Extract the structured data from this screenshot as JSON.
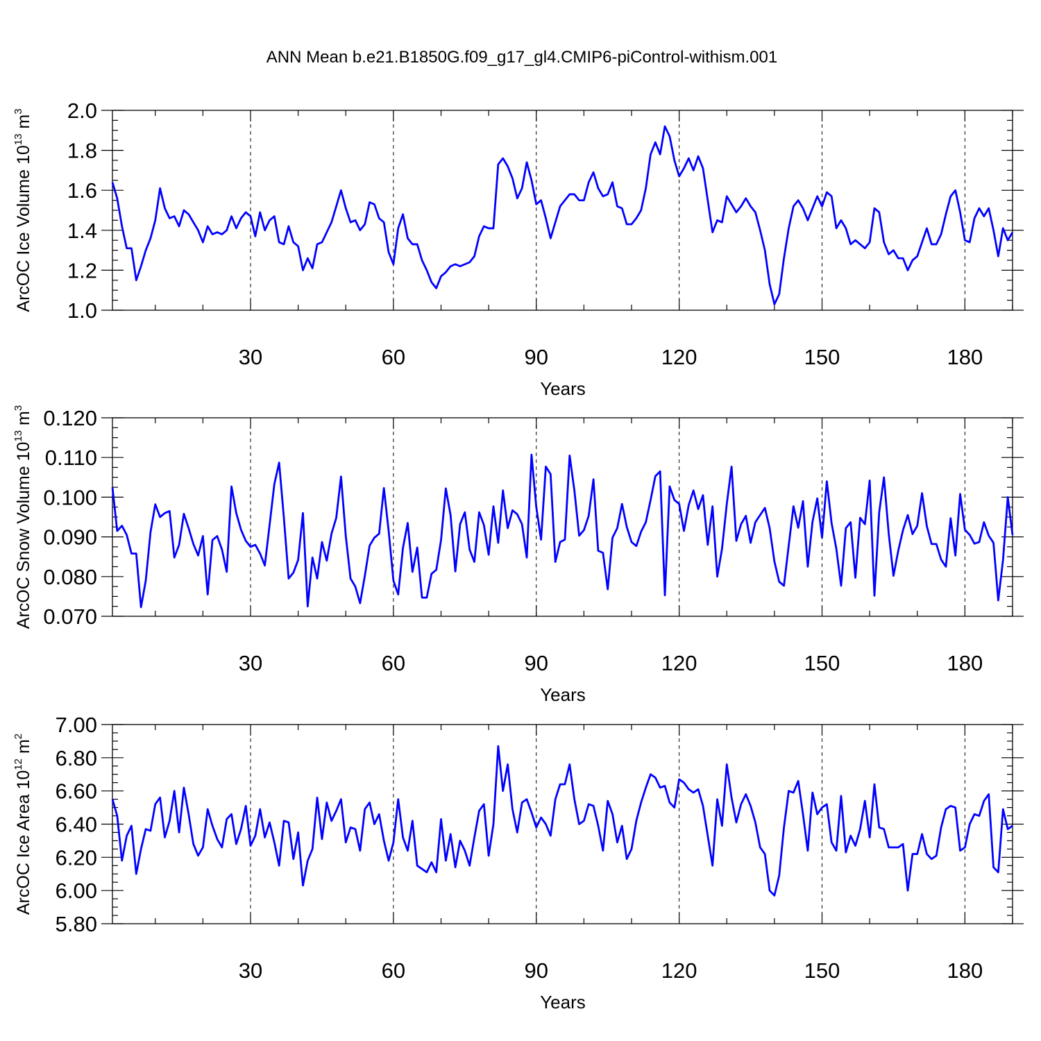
{
  "title": "ANN Mean b.e21.B1850G.f09_g17_gl4.CMIP6-piControl-withism.001",
  "chart_data": [
    {
      "type": "line",
      "name": "ice-volume",
      "ylabel": {
        "main": "ArcOC Ice Volume 10",
        "sup": "13",
        "unit": " m",
        "unit_sup": "3"
      },
      "xlabel": "Years",
      "xlim": [
        1,
        190
      ],
      "ylim": [
        1.0,
        2.0
      ],
      "yticks": [
        "1.0",
        "1.2",
        "1.4",
        "1.6",
        "1.8",
        "2.0"
      ],
      "ytick_values": [
        1.0,
        1.2,
        1.4,
        1.6,
        1.8,
        2.0
      ],
      "xticks": [
        "30",
        "60",
        "90",
        "120",
        "150",
        "180"
      ],
      "xtick_values": [
        30,
        60,
        90,
        120,
        150,
        180
      ],
      "grid": "vertical dashed at x ticks",
      "color": "#0000ff",
      "values": [
        1.64,
        1.56,
        1.42,
        1.31,
        1.31,
        1.15,
        1.22,
        1.3,
        1.36,
        1.45,
        1.61,
        1.51,
        1.46,
        1.47,
        1.42,
        1.5,
        1.48,
        1.44,
        1.4,
        1.34,
        1.42,
        1.38,
        1.39,
        1.38,
        1.4,
        1.47,
        1.41,
        1.46,
        1.49,
        1.47,
        1.37,
        1.49,
        1.4,
        1.45,
        1.47,
        1.34,
        1.33,
        1.42,
        1.34,
        1.32,
        1.2,
        1.26,
        1.21,
        1.33,
        1.34,
        1.39,
        1.44,
        1.52,
        1.6,
        1.51,
        1.44,
        1.45,
        1.4,
        1.43,
        1.54,
        1.53,
        1.46,
        1.44,
        1.29,
        1.23,
        1.41,
        1.48,
        1.36,
        1.33,
        1.33,
        1.25,
        1.2,
        1.14,
        1.11,
        1.17,
        1.19,
        1.22,
        1.23,
        1.22,
        1.23,
        1.24,
        1.27,
        1.37,
        1.42,
        1.41,
        1.41,
        1.73,
        1.76,
        1.72,
        1.66,
        1.56,
        1.61,
        1.74,
        1.65,
        1.53,
        1.55,
        1.46,
        1.36,
        1.44,
        1.52,
        1.55,
        1.58,
        1.58,
        1.55,
        1.55,
        1.64,
        1.69,
        1.61,
        1.57,
        1.58,
        1.64,
        1.52,
        1.51,
        1.43,
        1.43,
        1.46,
        1.5,
        1.61,
        1.78,
        1.84,
        1.78,
        1.92,
        1.87,
        1.75,
        1.67,
        1.71,
        1.76,
        1.7,
        1.77,
        1.71,
        1.55,
        1.39,
        1.45,
        1.44,
        1.57,
        1.53,
        1.49,
        1.52,
        1.56,
        1.52,
        1.49,
        1.4,
        1.3,
        1.13,
        1.03,
        1.08,
        1.26,
        1.41,
        1.52,
        1.55,
        1.51,
        1.45,
        1.51,
        1.57,
        1.52,
        1.59,
        1.57,
        1.41,
        1.45,
        1.41,
        1.33,
        1.35,
        1.33,
        1.31,
        1.34,
        1.51,
        1.49,
        1.34,
        1.28,
        1.3,
        1.26,
        1.26,
        1.2,
        1.25,
        1.27,
        1.34,
        1.41,
        1.33,
        1.33,
        1.38,
        1.48,
        1.57,
        1.6,
        1.49,
        1.35,
        1.34,
        1.46,
        1.51,
        1.47,
        1.51,
        1.4,
        1.27,
        1.41,
        1.35,
        1.39
      ]
    },
    {
      "type": "line",
      "name": "snow-volume",
      "ylabel": {
        "main": "ArcOC Snow Volume 10",
        "sup": "13",
        "unit": " m",
        "unit_sup": "3"
      },
      "xlabel": "Years",
      "xlim": [
        1,
        190
      ],
      "ylim": [
        0.07,
        0.12
      ],
      "yticks": [
        "0.070",
        "0.080",
        "0.090",
        "0.100",
        "0.110",
        "0.120"
      ],
      "ytick_values": [
        0.07,
        0.08,
        0.09,
        0.1,
        0.11,
        0.12
      ],
      "xticks": [
        "30",
        "60",
        "90",
        "120",
        "150",
        "180"
      ],
      "xtick_values": [
        30,
        60,
        90,
        120,
        150,
        180
      ],
      "grid": "vertical dashed at x ticks",
      "color": "#0000ff",
      "values": [
        0.1025,
        0.0915,
        0.0928,
        0.0905,
        0.0858,
        0.0858,
        0.0723,
        0.079,
        0.0912,
        0.0982,
        0.095,
        0.096,
        0.0965,
        0.0848,
        0.088,
        0.0958,
        0.0922,
        0.0882,
        0.0853,
        0.0902,
        0.0755,
        0.0892,
        0.0902,
        0.0868,
        0.0812,
        0.1027,
        0.096,
        0.0918,
        0.089,
        0.0875,
        0.088,
        0.0858,
        0.0828,
        0.093,
        0.1033,
        0.1087,
        0.0948,
        0.0795,
        0.081,
        0.0842,
        0.096,
        0.0725,
        0.0848,
        0.0795,
        0.0887,
        0.084,
        0.0908,
        0.0948,
        0.1052,
        0.0902,
        0.0795,
        0.0775,
        0.0733,
        0.0802,
        0.0878,
        0.0898,
        0.0908,
        0.1023,
        0.0915,
        0.079,
        0.0755,
        0.0872,
        0.0935,
        0.0812,
        0.0873,
        0.0747,
        0.0747,
        0.0807,
        0.0817,
        0.0892,
        0.1022,
        0.0955,
        0.0813,
        0.0932,
        0.0962,
        0.0868,
        0.0837,
        0.0962,
        0.093,
        0.0855,
        0.0977,
        0.0885,
        0.1017,
        0.0922,
        0.0967,
        0.0957,
        0.0932,
        0.0848,
        0.1107,
        0.0975,
        0.0893,
        0.1077,
        0.1058,
        0.0837,
        0.0887,
        0.0893,
        0.1105,
        0.1017,
        0.0903,
        0.0917,
        0.0953,
        0.1045,
        0.0865,
        0.086,
        0.0768,
        0.0898,
        0.0922,
        0.0983,
        0.0925,
        0.0887,
        0.0877,
        0.0913,
        0.0937,
        0.0993,
        0.1053,
        0.1065,
        0.0753,
        0.1027,
        0.0993,
        0.0983,
        0.0915,
        0.098,
        0.1017,
        0.097,
        0.1005,
        0.088,
        0.0977,
        0.08,
        0.087,
        0.0983,
        0.1077,
        0.089,
        0.0932,
        0.0953,
        0.0885,
        0.0937,
        0.0955,
        0.0973,
        0.0922,
        0.0838,
        0.0787,
        0.0777,
        0.0878,
        0.0977,
        0.0923,
        0.099,
        0.0825,
        0.0938,
        0.0997,
        0.0898,
        0.104,
        0.0935,
        0.087,
        0.0777,
        0.0922,
        0.0937,
        0.0797,
        0.0948,
        0.0932,
        0.1042,
        0.0752,
        0.0962,
        0.105,
        0.0908,
        0.0802,
        0.0865,
        0.0917,
        0.0955,
        0.0907,
        0.0928,
        0.101,
        0.0927,
        0.0882,
        0.0882,
        0.0843,
        0.0825,
        0.0947,
        0.0853,
        0.1008,
        0.0918,
        0.0905,
        0.0883,
        0.0887,
        0.0937,
        0.0903,
        0.0885,
        0.074,
        0.0842,
        0.1,
        0.0905
      ]
    },
    {
      "type": "line",
      "name": "ice-area",
      "ylabel": {
        "main": "ArcOC Ice Area 10",
        "sup": "12",
        "unit": " m",
        "unit_sup": "2"
      },
      "xlabel": "Years",
      "xlim": [
        1,
        190
      ],
      "ylim": [
        5.8,
        7.0
      ],
      "yticks": [
        "5.80",
        "6.00",
        "6.20",
        "6.40",
        "6.60",
        "6.80",
        "7.00"
      ],
      "ytick_values": [
        5.8,
        6.0,
        6.2,
        6.4,
        6.6,
        6.8,
        7.0
      ],
      "xticks": [
        "30",
        "60",
        "90",
        "120",
        "150",
        "180"
      ],
      "xtick_values": [
        30,
        60,
        90,
        120,
        150,
        180
      ],
      "grid": "vertical dashed at x ticks",
      "color": "#0000ff",
      "values": [
        6.55,
        6.45,
        6.18,
        6.33,
        6.39,
        6.1,
        6.25,
        6.37,
        6.36,
        6.52,
        6.56,
        6.32,
        6.42,
        6.6,
        6.35,
        6.62,
        6.46,
        6.28,
        6.21,
        6.26,
        6.49,
        6.39,
        6.31,
        6.26,
        6.43,
        6.46,
        6.28,
        6.37,
        6.51,
        6.27,
        6.33,
        6.49,
        6.32,
        6.41,
        6.29,
        6.15,
        6.42,
        6.41,
        6.19,
        6.35,
        6.03,
        6.18,
        6.25,
        6.56,
        6.31,
        6.53,
        6.42,
        6.48,
        6.55,
        6.29,
        6.38,
        6.37,
        6.24,
        6.49,
        6.53,
        6.4,
        6.46,
        6.3,
        6.18,
        6.29,
        6.55,
        6.32,
        6.24,
        6.42,
        6.15,
        6.13,
        6.11,
        6.17,
        6.11,
        6.43,
        6.18,
        6.34,
        6.14,
        6.3,
        6.24,
        6.15,
        6.32,
        6.48,
        6.52,
        6.21,
        6.4,
        6.87,
        6.6,
        6.76,
        6.49,
        6.35,
        6.53,
        6.55,
        6.47,
        6.38,
        6.44,
        6.4,
        6.33,
        6.55,
        6.64,
        6.64,
        6.76,
        6.55,
        6.4,
        6.42,
        6.52,
        6.51,
        6.39,
        6.24,
        6.54,
        6.46,
        6.29,
        6.39,
        6.19,
        6.25,
        6.42,
        6.53,
        6.62,
        6.7,
        6.68,
        6.62,
        6.63,
        6.53,
        6.5,
        6.67,
        6.65,
        6.61,
        6.59,
        6.61,
        6.51,
        6.33,
        6.15,
        6.55,
        6.39,
        6.76,
        6.56,
        6.41,
        6.52,
        6.58,
        6.51,
        6.41,
        6.26,
        6.22,
        6.0,
        5.97,
        6.09,
        6.38,
        6.6,
        6.59,
        6.66,
        6.46,
        6.24,
        6.59,
        6.46,
        6.5,
        6.52,
        6.29,
        6.24,
        6.57,
        6.23,
        6.33,
        6.27,
        6.37,
        6.54,
        6.32,
        6.64,
        6.38,
        6.37,
        6.26,
        6.26,
        6.26,
        6.28,
        6.0,
        6.22,
        6.22,
        6.34,
        6.22,
        6.19,
        6.21,
        6.38,
        6.49,
        6.51,
        6.5,
        6.24,
        6.26,
        6.4,
        6.46,
        6.45,
        6.54,
        6.58,
        6.14,
        6.11,
        6.49,
        6.37,
        6.39
      ]
    }
  ]
}
